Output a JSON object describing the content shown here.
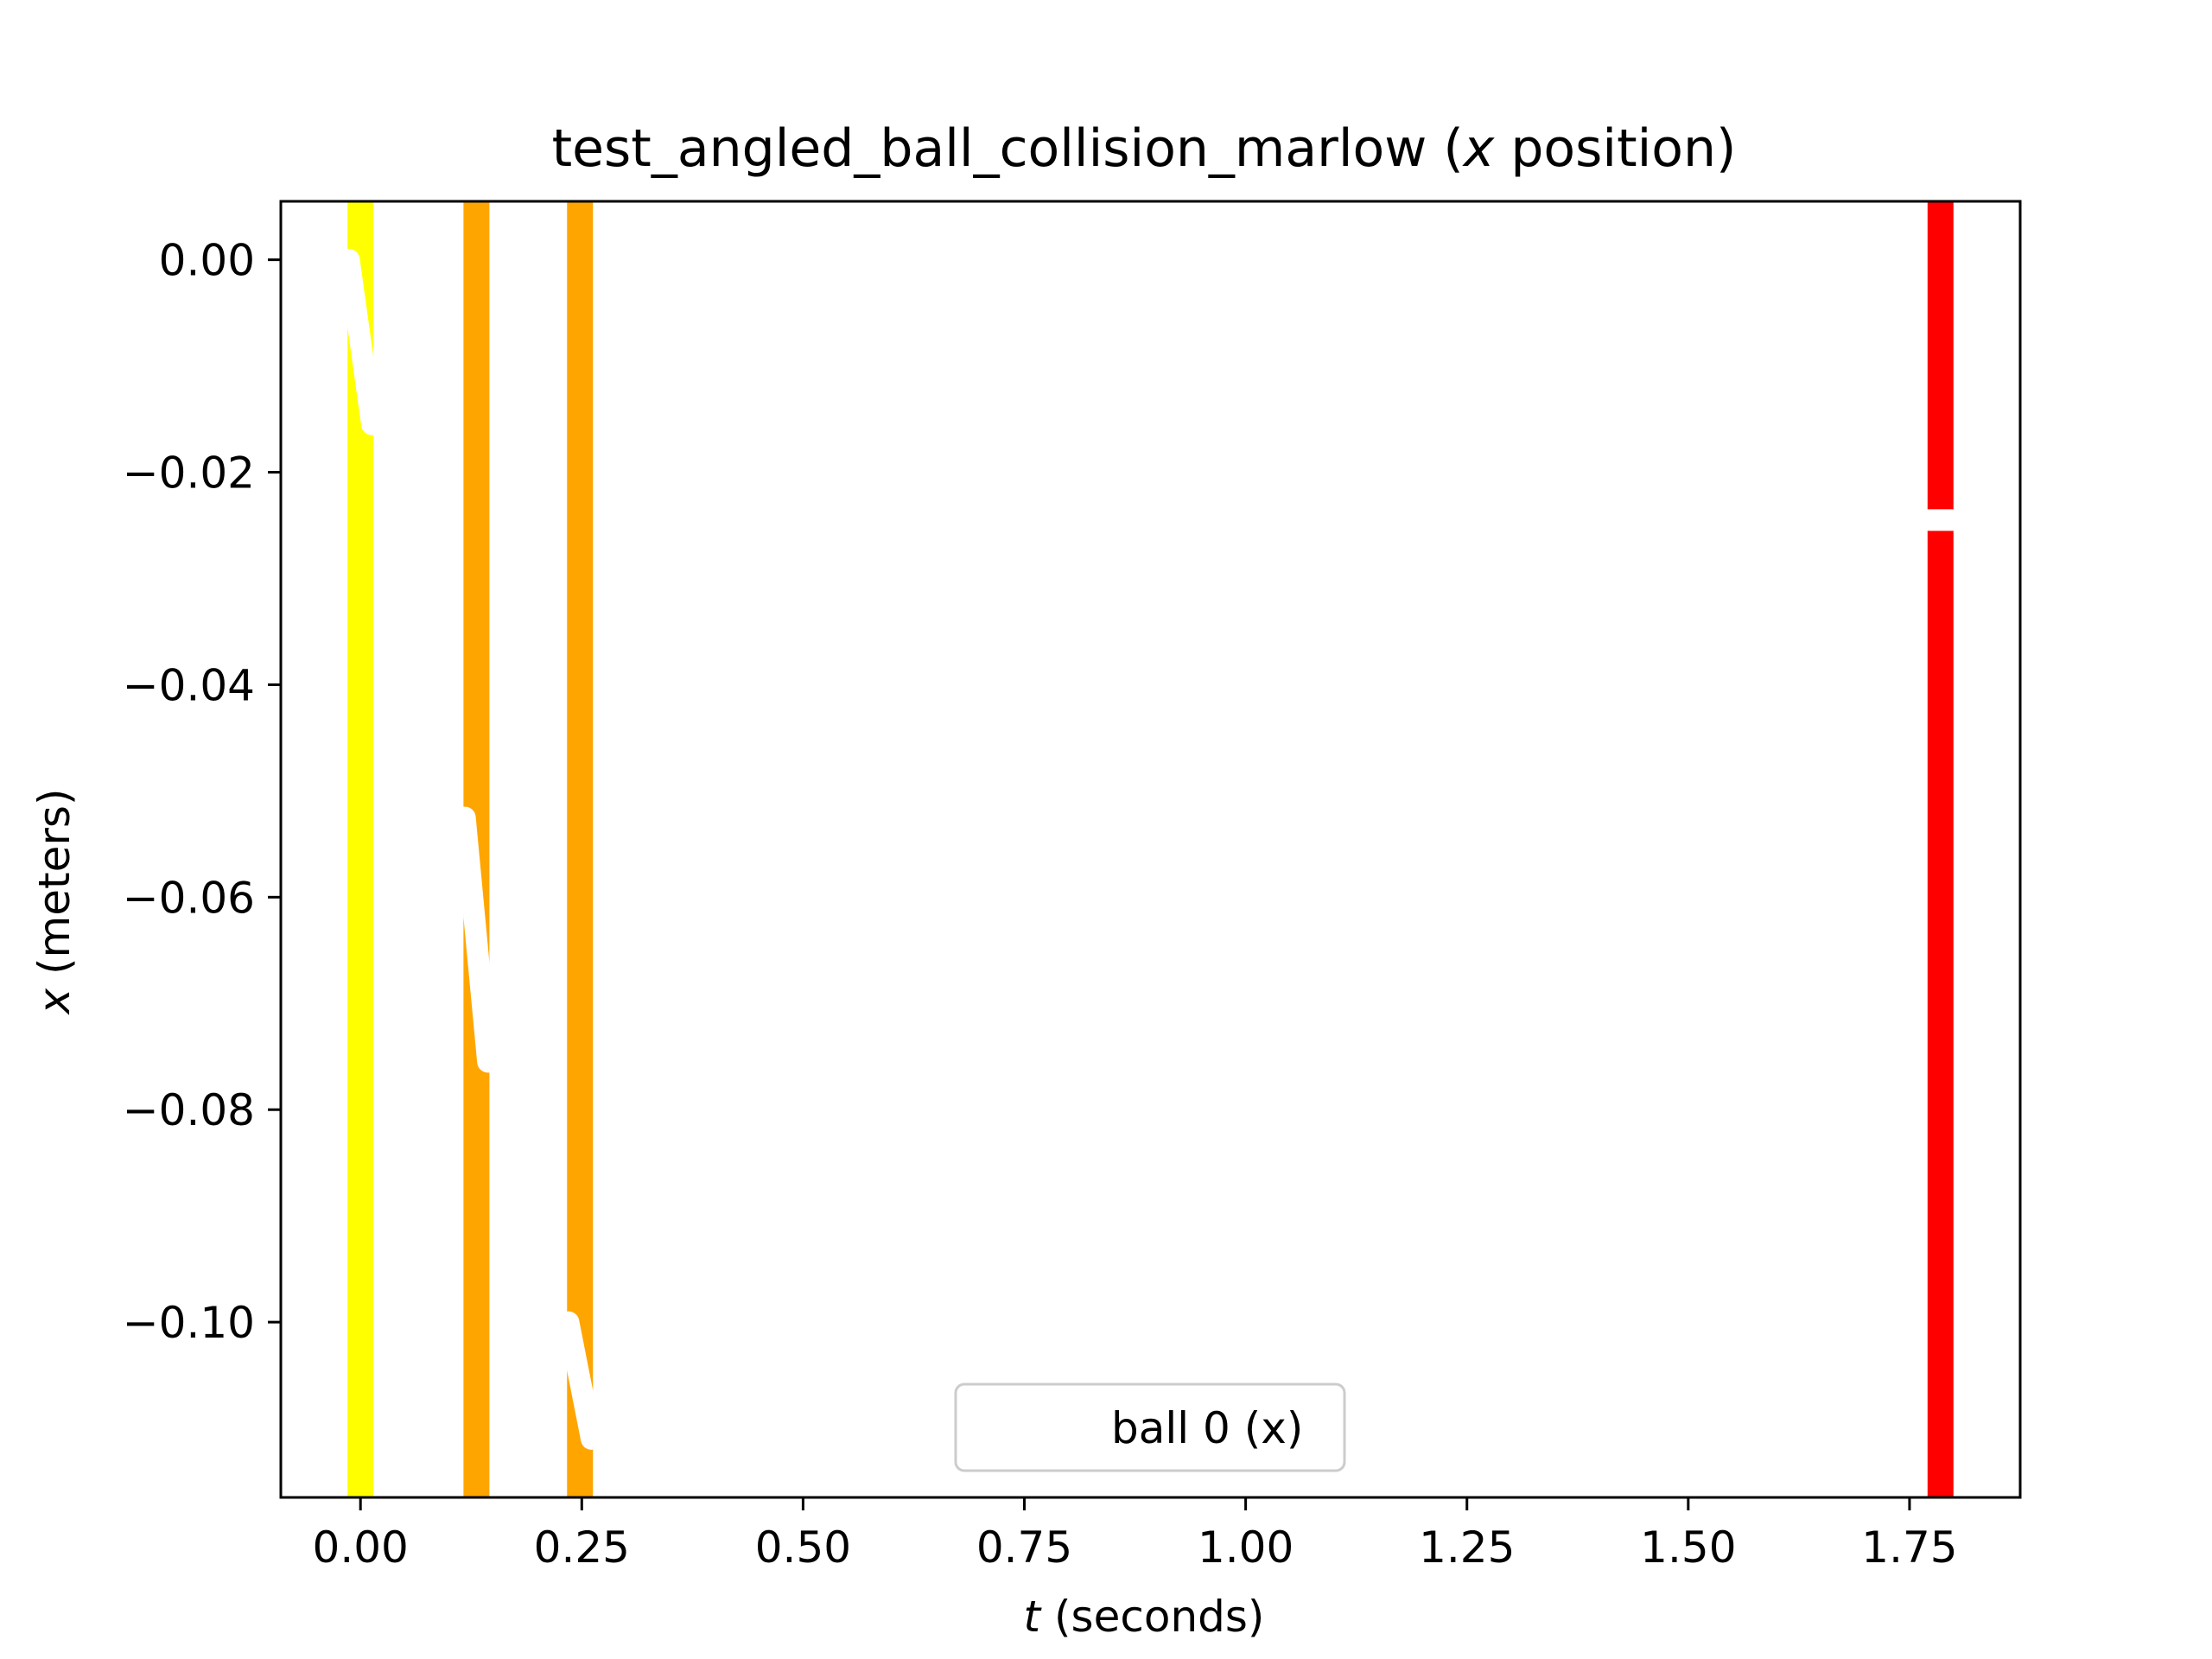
{
  "chart_data": {
    "type": "line",
    "title_main": "test_angled_ball_collision_marlow (",
    "title_var": "x",
    "title_rest": " position)",
    "xlabel_var": "t",
    "xlabel_rest": " (seconds)",
    "ylabel_var": "x",
    "ylabel_rest": " (meters)",
    "xlim": [
      -0.09,
      1.875
    ],
    "ylim": [
      -0.1165,
      0.0055
    ],
    "xticks": [
      0.0,
      0.25,
      0.5,
      0.75,
      1.0,
      1.25,
      1.5,
      1.75
    ],
    "xtick_labels": [
      "0.00",
      "0.25",
      "0.50",
      "0.75",
      "1.00",
      "1.25",
      "1.50",
      "1.75"
    ],
    "yticks": [
      0.0,
      -0.02,
      -0.04,
      -0.06,
      -0.08,
      -0.1
    ],
    "ytick_labels": [
      "0.00",
      "−0.02",
      "−0.04",
      "−0.06",
      "−0.08",
      "−0.10"
    ],
    "event_bands": [
      {
        "t": 0.0,
        "color": "#ffff00"
      },
      {
        "t": 0.131,
        "color": "#ffa500"
      },
      {
        "t": 0.248,
        "color": "#ffa500"
      },
      {
        "t": 1.785,
        "color": "#ff0000"
      }
    ],
    "series": [
      {
        "name": "ball 0 (x)",
        "color": "#ffffff",
        "x": [
          -0.013,
          0.013,
          0.118,
          0.144,
          0.235,
          0.261,
          1.772,
          1.798
        ],
        "y": [
          0.0,
          -0.0155,
          -0.0525,
          -0.0755,
          -0.1,
          -0.111,
          -0.0245,
          -0.0245
        ],
        "breaks_after": [
          1,
          3,
          5
        ]
      }
    ],
    "legend_position": "lower-center",
    "grid": false
  }
}
